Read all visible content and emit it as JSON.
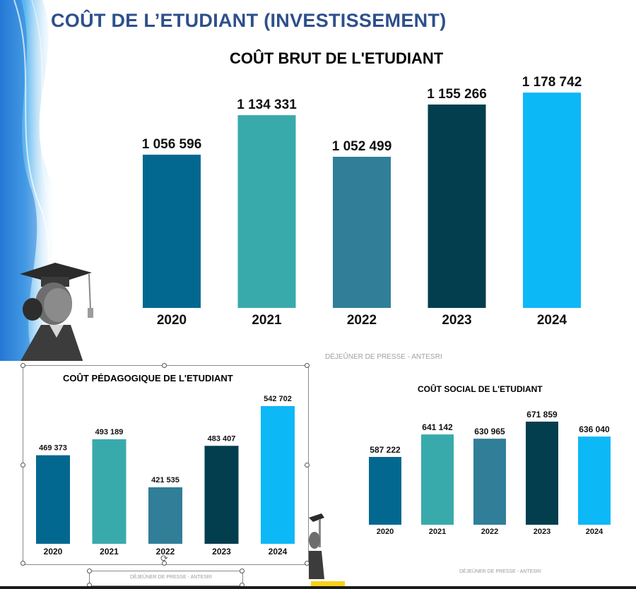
{
  "header": {
    "title": "COÛT DE L’ETUDIANT (INVESTISSEMENT)"
  },
  "colors": [
    "#036890",
    "#39aaac",
    "#307e98",
    "#033e4e",
    "#0db8f6"
  ],
  "footer_main": "DÉJEÛNER DE PRESSE - ANTESRI",
  "footer_left": "DÉJEÛNER DE PRESSE - ANTESRI",
  "footer_right": "DÉJEÛNER DE PRESSE - ANTESRI",
  "chart_data": [
    {
      "type": "bar",
      "title": "COÛT BRUT DE L'ETUDIANT",
      "categories": [
        "2020",
        "2021",
        "2022",
        "2023",
        "2024"
      ],
      "values": [
        1056596,
        1134331,
        1052499,
        1155266,
        1178742
      ],
      "value_labels": [
        "1 056 596",
        "1 134 331",
        "1 052 499",
        "1 155 266",
        "1 178 742"
      ],
      "xlabel": "",
      "ylabel": "",
      "grid": false,
      "legend": "none"
    },
    {
      "type": "bar",
      "title": "COÛT PÉDAGOGIQUE DE L'ETUDIANT",
      "categories": [
        "2020",
        "2021",
        "2022",
        "2023",
        "2024"
      ],
      "values": [
        469373,
        493189,
        421535,
        483407,
        542702
      ],
      "value_labels": [
        "469 373",
        "493 189",
        "421 535",
        "483 407",
        "542 702"
      ],
      "xlabel": "",
      "ylabel": "",
      "grid": false,
      "legend": "none"
    },
    {
      "type": "bar",
      "title": "COÛT SOCIAL DE L'ETUDIANT",
      "categories": [
        "2020",
        "2021",
        "2022",
        "2023",
        "2024"
      ],
      "values": [
        587222,
        641142,
        630965,
        671859,
        636040
      ],
      "value_labels": [
        "587 222",
        "641 142",
        "630 965",
        "671 859",
        "636 040"
      ],
      "xlabel": "",
      "ylabel": "",
      "grid": false,
      "legend": "none"
    }
  ]
}
